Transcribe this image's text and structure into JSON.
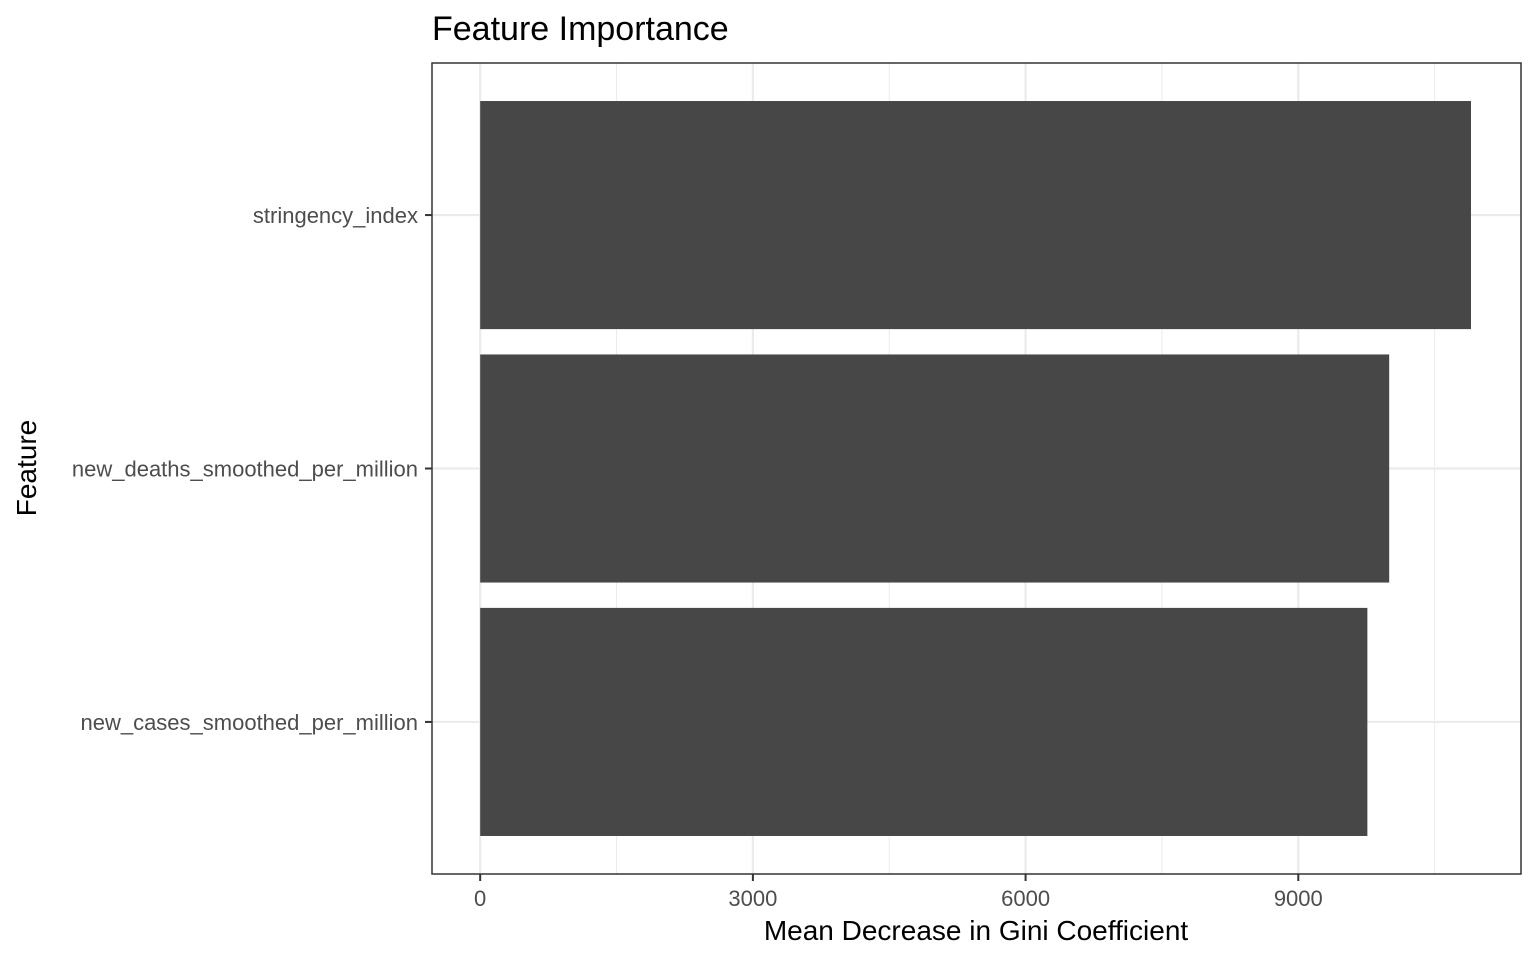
{
  "chart_data": {
    "type": "bar",
    "orientation": "horizontal",
    "title": "Feature Importance",
    "xlabel": "Mean Decrease in Gini Coefficient",
    "ylabel": "Feature",
    "categories": [
      "stringency_index",
      "new_deaths_smoothed_per_million",
      "new_cases_smoothed_per_million"
    ],
    "values": [
      10900,
      10000,
      9760
    ],
    "xlim": [
      -530,
      11450
    ],
    "xticks": [
      0,
      3000,
      6000,
      9000
    ],
    "xtick_labels": [
      "0",
      "3000",
      "6000",
      "9000"
    ],
    "xminor": [
      1500,
      4500,
      7500,
      10500
    ],
    "grid": true,
    "bar_color": "#474747",
    "grid_color": "#ebebeb",
    "panel_border_color": "#333333"
  }
}
